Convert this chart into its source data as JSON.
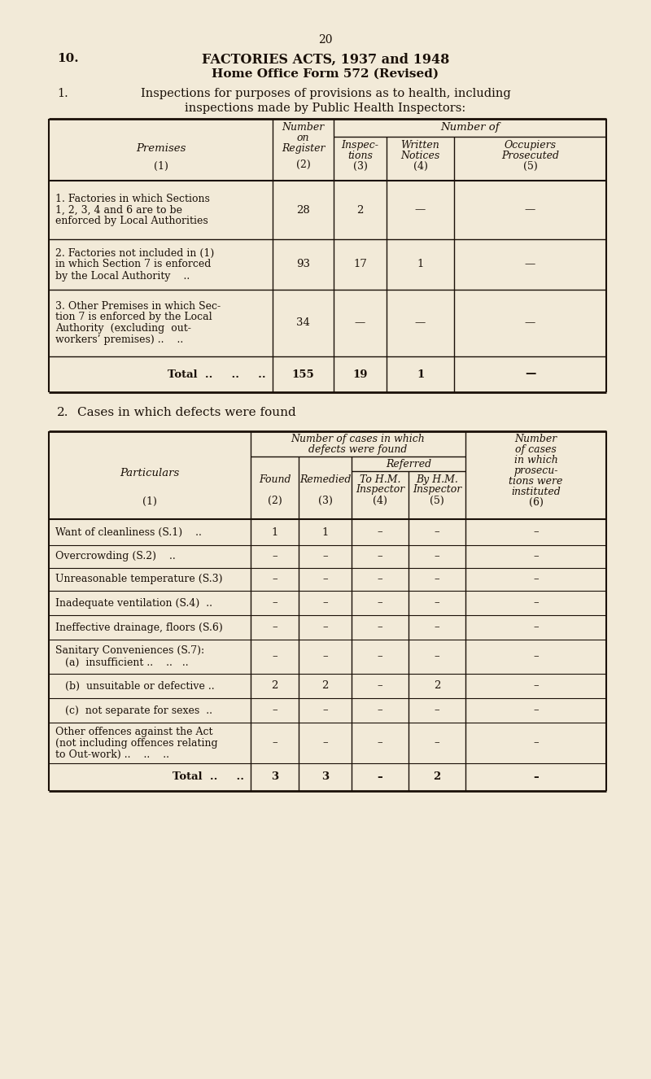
{
  "bg_color": "#f2ead8",
  "page_number": "20",
  "section_number": "10.",
  "title_line1": "FACTORIES ACTS, 1937 and 1948",
  "title_line2": "Home Office Form 572 (Revised)",
  "section1_label": "1.",
  "section1_text_line1": "Inspections for purposes of provisions as to health, including",
  "section1_text_line2": "inspections made by Public Health Inspectors:",
  "table1_rows": [
    {
      "premises_lines": [
        "1. Factories in which Sections",
        "1, 2, 3, 4 and 6 are to be",
        "enforced by Local Authorities"
      ],
      "register": "28",
      "inspections": "2",
      "written": "—",
      "occupiers": "—",
      "is_total": false
    },
    {
      "premises_lines": [
        "2. Factories not included in (1)",
        "in which Section 7 is enforced",
        "by the Local Authority    .."
      ],
      "register": "93",
      "inspections": "17",
      "written": "1",
      "occupiers": "—",
      "is_total": false
    },
    {
      "premises_lines": [
        "3. Other Premises in which Sec-",
        "tion 7 is enforced by the Local",
        "Authority  (excluding  out-",
        "workers’ premises) ..    .."
      ],
      "register": "34",
      "inspections": "—",
      "written": "—",
      "occupiers": "—",
      "is_total": false
    },
    {
      "premises_lines": [
        "Total  ..     ..     .."
      ],
      "register": "155",
      "inspections": "19",
      "written": "1",
      "occupiers": "—",
      "is_total": true
    }
  ],
  "section2_label": "2.",
  "section2_text": "Cases in which defects were found",
  "table2_rows": [
    {
      "particulars_lines": [
        "Want of cleanliness (S.1)    .."
      ],
      "found": "1",
      "remedied": "1",
      "tohm": "–",
      "byhm": "–",
      "prosecutions": "–",
      "is_total": false
    },
    {
      "particulars_lines": [
        "Overcrowding (S.2)    .."
      ],
      "found": "–",
      "remedied": "–",
      "tohm": "–",
      "byhm": "–",
      "prosecutions": "–",
      "is_total": false
    },
    {
      "particulars_lines": [
        "Unreasonable temperature (S.3)"
      ],
      "found": "–",
      "remedied": "–",
      "tohm": "–",
      "byhm": "–",
      "prosecutions": "–",
      "is_total": false
    },
    {
      "particulars_lines": [
        "Inadequate ventilation (S.4)  .."
      ],
      "found": "–",
      "remedied": "–",
      "tohm": "–",
      "byhm": "–",
      "prosecutions": "–",
      "is_total": false
    },
    {
      "particulars_lines": [
        "Ineffective drainage, floors (S.6)"
      ],
      "found": "–",
      "remedied": "–",
      "tohm": "–",
      "byhm": "–",
      "prosecutions": "–",
      "is_total": false
    },
    {
      "particulars_lines": [
        "Sanitary Conveniences (S.7):",
        "   (a)  insufficient ..    ..   .."
      ],
      "found": "–",
      "remedied": "–",
      "tohm": "–",
      "byhm": "–",
      "prosecutions": "–",
      "is_total": false
    },
    {
      "particulars_lines": [
        "   (b)  unsuitable or defective .."
      ],
      "found": "2",
      "remedied": "2",
      "tohm": "–",
      "byhm": "2",
      "prosecutions": "–",
      "is_total": false
    },
    {
      "particulars_lines": [
        "   (c)  not separate for sexes  .."
      ],
      "found": "–",
      "remedied": "–",
      "tohm": "–",
      "byhm": "–",
      "prosecutions": "–",
      "is_total": false
    },
    {
      "particulars_lines": [
        "Other offences against the Act",
        "(not including offences relating",
        "to Out-work) ..    ..    .."
      ],
      "found": "–",
      "remedied": "–",
      "tohm": "–",
      "byhm": "–",
      "prosecutions": "–",
      "is_total": false
    },
    {
      "particulars_lines": [
        "Total  ..     .."
      ],
      "found": "3",
      "remedied": "3",
      "tohm": "–",
      "byhm": "2",
      "prosecutions": "–",
      "is_total": true
    }
  ],
  "text_color": "#1a1008",
  "line_color": "#1a1008"
}
